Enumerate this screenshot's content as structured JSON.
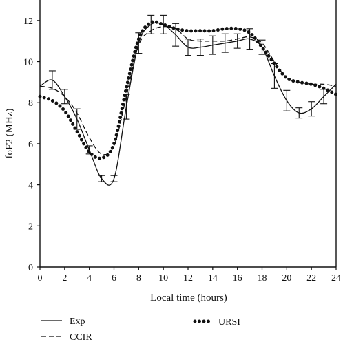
{
  "chart_data": {
    "type": "line",
    "title": "",
    "xlabel": "Local time (hours)",
    "ylabel": "foF2 (MHz)",
    "xlim": [
      0,
      24
    ],
    "ylim": [
      0,
      13
    ],
    "x_ticks": [
      0,
      2,
      4,
      6,
      8,
      10,
      12,
      14,
      16,
      18,
      20,
      22,
      24
    ],
    "y_ticks": [
      0,
      2,
      4,
      6,
      8,
      10,
      12
    ],
    "grid": false,
    "legend_position": "bottom",
    "series": [
      {
        "name": "Exp",
        "style": "solid",
        "x": [
          0,
          1,
          2,
          3,
          4,
          5,
          6,
          7,
          8,
          9,
          10,
          11,
          12,
          13,
          14,
          15,
          16,
          17,
          18,
          19,
          20,
          21,
          22,
          23,
          24
        ],
        "y": [
          8.8,
          9.1,
          8.3,
          7.2,
          5.7,
          4.3,
          4.3,
          7.8,
          10.9,
          11.8,
          11.8,
          11.3,
          10.7,
          10.7,
          10.8,
          10.9,
          11.0,
          11.1,
          10.7,
          9.3,
          8.1,
          7.5,
          7.7,
          8.3,
          8.9
        ],
        "err": [
          0,
          0.45,
          0.35,
          0.5,
          0.2,
          0.15,
          0.15,
          0.6,
          0.5,
          0.45,
          0.45,
          0.55,
          0.4,
          0.4,
          0.45,
          0.45,
          0.35,
          0.5,
          0.35,
          0.6,
          0.5,
          0.25,
          0.35,
          0.35,
          0
        ]
      },
      {
        "name": "CCIR",
        "style": "dashed",
        "x": [
          0,
          1,
          2,
          3,
          4,
          5,
          6,
          7,
          8,
          9,
          10,
          11,
          12,
          13,
          14,
          15,
          16,
          17,
          18,
          19,
          20,
          21,
          22,
          23,
          24
        ],
        "y": [
          8.8,
          8.7,
          8.3,
          7.5,
          6.3,
          5.5,
          5.9,
          8.3,
          10.8,
          11.5,
          11.7,
          11.6,
          11.1,
          11.0,
          11.0,
          11.0,
          11.1,
          11.2,
          10.9,
          10.0,
          9.2,
          9.0,
          8.9,
          8.9,
          8.8
        ]
      },
      {
        "name": "URSI",
        "style": "dotted",
        "x": [
          0,
          1,
          2,
          3,
          4,
          5,
          6,
          7,
          8,
          9,
          10,
          11,
          12,
          13,
          14,
          15,
          16,
          17,
          18,
          19,
          20,
          21,
          22,
          23,
          24
        ],
        "y": [
          8.3,
          8.1,
          7.6,
          6.6,
          5.6,
          5.3,
          6.0,
          8.7,
          11.1,
          11.9,
          11.8,
          11.6,
          11.5,
          11.5,
          11.5,
          11.6,
          11.6,
          11.4,
          10.7,
          9.9,
          9.2,
          9.0,
          8.9,
          8.7,
          8.4
        ]
      }
    ]
  }
}
